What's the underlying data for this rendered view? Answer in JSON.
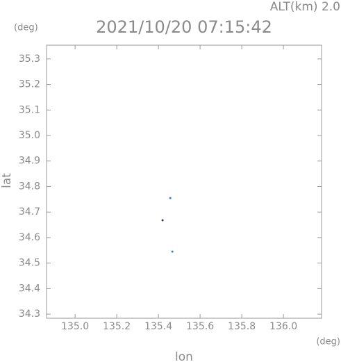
{
  "chart_data": {
    "type": "scatter",
    "title": "2021/10/20 07:15:42",
    "subtitle": "ALT(km) 2.0",
    "y_unit": "(deg)",
    "x_unit": "(deg)",
    "xlabel": "lon",
    "ylabel": "lat",
    "x": [
      135.457,
      135.42,
      135.467
    ],
    "values": [
      34.755,
      34.668,
      34.545
    ],
    "colors": [
      "#3a7bd5",
      "#333366",
      "#3a7bd5"
    ],
    "xlim": [
      134.863,
      136.183
    ],
    "ylim": [
      34.284,
      35.354
    ],
    "xticks": [
      {
        "value": 135.0,
        "label": "135.0"
      },
      135.2,
      135.4,
      135.6,
      135.8,
      {
        "value": 136.0,
        "label": "136.0"
      }
    ],
    "yticks": [
      34.3,
      34.4,
      34.5,
      34.6,
      34.7,
      34.8,
      34.9,
      {
        "value": 35.0,
        "label": "35.0"
      },
      35.1,
      35.2,
      35.3
    ]
  }
}
